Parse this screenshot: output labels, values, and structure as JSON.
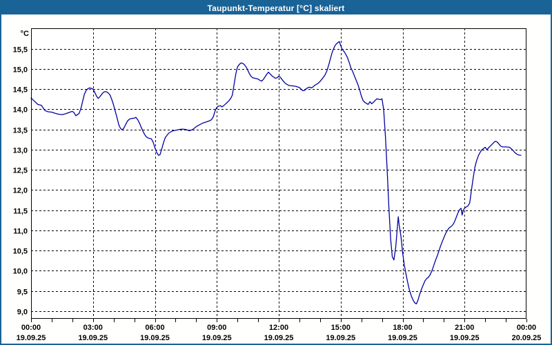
{
  "window": {
    "title": "Taupunkt-Temperatur [°C] skaliert",
    "titlebar_bg": "#1a6397",
    "border_color": "#1a6397",
    "content_bg": "#fffffe"
  },
  "chart_data": {
    "type": "line",
    "title": "Taupunkt-Temperatur [°C] skaliert",
    "series_name": "Taupunkt-Temperatur",
    "unit_label": "°C",
    "line_color": "#0000a0",
    "grid_color": "#000000",
    "axis_color": "#000000",
    "plot_bg": "#ffffff",
    "legend": "none",
    "grid": "dashed, every 0.5 °C horizontal, every 3 h vertical",
    "ylim": [
      8.85,
      16.0
    ],
    "xlim_hours": [
      0,
      24
    ],
    "minor_tick_hours": 1,
    "y_ticks": [
      {
        "value": 15.5,
        "label": "15,5"
      },
      {
        "value": 15.0,
        "label": "15,0"
      },
      {
        "value": 14.5,
        "label": "14,5"
      },
      {
        "value": 14.0,
        "label": "14,0"
      },
      {
        "value": 13.5,
        "label": "13,5"
      },
      {
        "value": 13.0,
        "label": "13,0"
      },
      {
        "value": 12.5,
        "label": "12,5"
      },
      {
        "value": 12.0,
        "label": "12,0"
      },
      {
        "value": 11.5,
        "label": "11,5"
      },
      {
        "value": 11.0,
        "label": "11,0"
      },
      {
        "value": 10.5,
        "label": "10,5"
      },
      {
        "value": 10.0,
        "label": "10,0"
      },
      {
        "value": 9.5,
        "label": "9,5"
      },
      {
        "value": 9.0,
        "label": "9,0"
      }
    ],
    "x_ticks": [
      {
        "hour": 0,
        "time": "00:00",
        "date": "19.09.25"
      },
      {
        "hour": 3,
        "time": "03:00",
        "date": "19.09.25"
      },
      {
        "hour": 6,
        "time": "06:00",
        "date": "19.09.25"
      },
      {
        "hour": 9,
        "time": "09:00",
        "date": "19.09.25"
      },
      {
        "hour": 12,
        "time": "12:00",
        "date": "19.09.25"
      },
      {
        "hour": 15,
        "time": "15:00",
        "date": "19.09.25"
      },
      {
        "hour": 18,
        "time": "18:00",
        "date": "19.09.25"
      },
      {
        "hour": 21,
        "time": "21:00",
        "date": "19.09.25"
      },
      {
        "hour": 24,
        "time": "00:00",
        "date": "20.09.25"
      }
    ],
    "points": [
      [
        0.0,
        14.28
      ],
      [
        0.17,
        14.2
      ],
      [
        0.33,
        14.12
      ],
      [
        0.5,
        14.1
      ],
      [
        0.67,
        13.97
      ],
      [
        0.83,
        13.94
      ],
      [
        1.0,
        13.93
      ],
      [
        1.17,
        13.9
      ],
      [
        1.33,
        13.88
      ],
      [
        1.5,
        13.87
      ],
      [
        1.67,
        13.89
      ],
      [
        1.83,
        13.92
      ],
      [
        2.0,
        13.95
      ],
      [
        2.08,
        13.92
      ],
      [
        2.17,
        13.84
      ],
      [
        2.33,
        13.9
      ],
      [
        2.42,
        14.03
      ],
      [
        2.5,
        14.2
      ],
      [
        2.58,
        14.37
      ],
      [
        2.67,
        14.47
      ],
      [
        2.75,
        14.51
      ],
      [
        2.83,
        14.53
      ],
      [
        2.92,
        14.52
      ],
      [
        3.0,
        14.5
      ],
      [
        3.08,
        14.43
      ],
      [
        3.17,
        14.33
      ],
      [
        3.25,
        14.27
      ],
      [
        3.33,
        14.31
      ],
      [
        3.42,
        14.37
      ],
      [
        3.5,
        14.42
      ],
      [
        3.58,
        14.44
      ],
      [
        3.67,
        14.43
      ],
      [
        3.75,
        14.4
      ],
      [
        3.83,
        14.35
      ],
      [
        3.92,
        14.23
      ],
      [
        4.0,
        14.1
      ],
      [
        4.08,
        13.95
      ],
      [
        4.17,
        13.78
      ],
      [
        4.25,
        13.62
      ],
      [
        4.33,
        13.53
      ],
      [
        4.42,
        13.49
      ],
      [
        4.5,
        13.54
      ],
      [
        4.58,
        13.62
      ],
      [
        4.67,
        13.71
      ],
      [
        4.75,
        13.75
      ],
      [
        4.83,
        13.77
      ],
      [
        5.0,
        13.78
      ],
      [
        5.08,
        13.8
      ],
      [
        5.17,
        13.74
      ],
      [
        5.25,
        13.66
      ],
      [
        5.33,
        13.56
      ],
      [
        5.42,
        13.46
      ],
      [
        5.5,
        13.38
      ],
      [
        5.58,
        13.32
      ],
      [
        5.67,
        13.29
      ],
      [
        5.83,
        13.27
      ],
      [
        5.92,
        13.18
      ],
      [
        6.0,
        13.05
      ],
      [
        6.08,
        12.94
      ],
      [
        6.17,
        12.86
      ],
      [
        6.25,
        12.88
      ],
      [
        6.33,
        13.02
      ],
      [
        6.42,
        13.18
      ],
      [
        6.5,
        13.3
      ],
      [
        6.67,
        13.41
      ],
      [
        6.83,
        13.46
      ],
      [
        7.0,
        13.48
      ],
      [
        7.17,
        13.5
      ],
      [
        7.33,
        13.51
      ],
      [
        7.5,
        13.5
      ],
      [
        7.67,
        13.47
      ],
      [
        7.83,
        13.5
      ],
      [
        8.0,
        13.57
      ],
      [
        8.17,
        13.62
      ],
      [
        8.33,
        13.66
      ],
      [
        8.5,
        13.69
      ],
      [
        8.67,
        13.72
      ],
      [
        8.75,
        13.75
      ],
      [
        8.83,
        13.82
      ],
      [
        8.92,
        13.97
      ],
      [
        9.0,
        14.05
      ],
      [
        9.08,
        14.08
      ],
      [
        9.17,
        14.09
      ],
      [
        9.25,
        14.06
      ],
      [
        9.33,
        14.09
      ],
      [
        9.42,
        14.13
      ],
      [
        9.5,
        14.17
      ],
      [
        9.58,
        14.21
      ],
      [
        9.67,
        14.27
      ],
      [
        9.75,
        14.35
      ],
      [
        9.83,
        14.6
      ],
      [
        9.92,
        14.88
      ],
      [
        10.0,
        15.05
      ],
      [
        10.08,
        15.11
      ],
      [
        10.17,
        15.15
      ],
      [
        10.25,
        15.14
      ],
      [
        10.33,
        15.11
      ],
      [
        10.42,
        15.05
      ],
      [
        10.5,
        14.97
      ],
      [
        10.58,
        14.88
      ],
      [
        10.67,
        14.81
      ],
      [
        10.75,
        14.78
      ],
      [
        10.92,
        14.76
      ],
      [
        11.0,
        14.75
      ],
      [
        11.08,
        14.72
      ],
      [
        11.17,
        14.7
      ],
      [
        11.25,
        14.74
      ],
      [
        11.33,
        14.8
      ],
      [
        11.42,
        14.87
      ],
      [
        11.5,
        14.92
      ],
      [
        11.58,
        14.88
      ],
      [
        11.67,
        14.83
      ],
      [
        11.75,
        14.8
      ],
      [
        11.83,
        14.77
      ],
      [
        11.92,
        14.78
      ],
      [
        12.0,
        14.82
      ],
      [
        12.08,
        14.79
      ],
      [
        12.17,
        14.73
      ],
      [
        12.25,
        14.68
      ],
      [
        12.33,
        14.64
      ],
      [
        12.42,
        14.61
      ],
      [
        12.5,
        14.59
      ],
      [
        12.67,
        14.58
      ],
      [
        12.83,
        14.57
      ],
      [
        13.0,
        14.54
      ],
      [
        13.08,
        14.5
      ],
      [
        13.17,
        14.46
      ],
      [
        13.25,
        14.47
      ],
      [
        13.33,
        14.51
      ],
      [
        13.42,
        14.54
      ],
      [
        13.5,
        14.55
      ],
      [
        13.58,
        14.53
      ],
      [
        13.67,
        14.56
      ],
      [
        13.75,
        14.6
      ],
      [
        13.83,
        14.62
      ],
      [
        13.92,
        14.65
      ],
      [
        14.0,
        14.69
      ],
      [
        14.08,
        14.74
      ],
      [
        14.17,
        14.8
      ],
      [
        14.25,
        14.86
      ],
      [
        14.33,
        14.95
      ],
      [
        14.42,
        15.1
      ],
      [
        14.5,
        15.25
      ],
      [
        14.58,
        15.4
      ],
      [
        14.67,
        15.52
      ],
      [
        14.75,
        15.6
      ],
      [
        14.83,
        15.64
      ],
      [
        14.93,
        15.68
      ],
      [
        15.0,
        15.58
      ],
      [
        15.08,
        15.48
      ],
      [
        15.17,
        15.43
      ],
      [
        15.25,
        15.36
      ],
      [
        15.33,
        15.28
      ],
      [
        15.42,
        15.15
      ],
      [
        15.5,
        15.02
      ],
      [
        15.58,
        14.94
      ],
      [
        15.67,
        14.82
      ],
      [
        15.75,
        14.72
      ],
      [
        15.83,
        14.62
      ],
      [
        15.92,
        14.48
      ],
      [
        16.0,
        14.33
      ],
      [
        16.08,
        14.22
      ],
      [
        16.17,
        14.17
      ],
      [
        16.25,
        14.15
      ],
      [
        16.33,
        14.12
      ],
      [
        16.42,
        14.19
      ],
      [
        16.5,
        14.14
      ],
      [
        16.58,
        14.17
      ],
      [
        16.67,
        14.22
      ],
      [
        16.75,
        14.26
      ],
      [
        16.92,
        14.24
      ],
      [
        17.0,
        14.26
      ],
      [
        17.08,
        14.0
      ],
      [
        17.17,
        13.3
      ],
      [
        17.25,
        12.5
      ],
      [
        17.33,
        11.6
      ],
      [
        17.42,
        10.8
      ],
      [
        17.5,
        10.35
      ],
      [
        17.58,
        10.27
      ],
      [
        17.67,
        10.6
      ],
      [
        17.75,
        11.1
      ],
      [
        17.79,
        11.34
      ],
      [
        17.83,
        11.15
      ],
      [
        17.92,
        10.85
      ],
      [
        18.0,
        10.45
      ],
      [
        18.08,
        10.15
      ],
      [
        18.17,
        9.9
      ],
      [
        18.25,
        9.7
      ],
      [
        18.33,
        9.52
      ],
      [
        18.42,
        9.38
      ],
      [
        18.5,
        9.28
      ],
      [
        18.58,
        9.21
      ],
      [
        18.67,
        9.18
      ],
      [
        18.75,
        9.28
      ],
      [
        18.83,
        9.42
      ],
      [
        18.92,
        9.55
      ],
      [
        19.0,
        9.65
      ],
      [
        19.08,
        9.75
      ],
      [
        19.17,
        9.81
      ],
      [
        19.25,
        9.84
      ],
      [
        19.33,
        9.9
      ],
      [
        19.42,
        10.0
      ],
      [
        19.5,
        10.12
      ],
      [
        19.58,
        10.24
      ],
      [
        19.67,
        10.36
      ],
      [
        19.75,
        10.48
      ],
      [
        19.83,
        10.6
      ],
      [
        19.92,
        10.72
      ],
      [
        20.0,
        10.82
      ],
      [
        20.08,
        10.92
      ],
      [
        20.17,
        11.0
      ],
      [
        20.25,
        11.06
      ],
      [
        20.33,
        11.09
      ],
      [
        20.42,
        11.13
      ],
      [
        20.5,
        11.2
      ],
      [
        20.58,
        11.3
      ],
      [
        20.67,
        11.42
      ],
      [
        20.75,
        11.51
      ],
      [
        20.83,
        11.55
      ],
      [
        20.88,
        11.38
      ],
      [
        20.96,
        11.52
      ],
      [
        21.0,
        11.55
      ],
      [
        21.08,
        11.58
      ],
      [
        21.17,
        11.61
      ],
      [
        21.25,
        11.68
      ],
      [
        21.29,
        11.82
      ],
      [
        21.33,
        11.98
      ],
      [
        21.42,
        12.3
      ],
      [
        21.5,
        12.56
      ],
      [
        21.58,
        12.72
      ],
      [
        21.67,
        12.85
      ],
      [
        21.75,
        12.93
      ],
      [
        21.83,
        12.99
      ],
      [
        21.92,
        13.03
      ],
      [
        22.0,
        13.06
      ],
      [
        22.08,
        13.0
      ],
      [
        22.17,
        13.05
      ],
      [
        22.25,
        13.09
      ],
      [
        22.33,
        13.13
      ],
      [
        22.42,
        13.18
      ],
      [
        22.5,
        13.21
      ],
      [
        22.58,
        13.19
      ],
      [
        22.67,
        13.14
      ],
      [
        22.75,
        13.09
      ],
      [
        22.83,
        13.07
      ],
      [
        23.0,
        13.07
      ],
      [
        23.17,
        13.06
      ],
      [
        23.25,
        13.03
      ],
      [
        23.33,
        12.99
      ],
      [
        23.42,
        12.94
      ],
      [
        23.5,
        12.9
      ],
      [
        23.62,
        12.87
      ],
      [
        23.73,
        12.86
      ]
    ]
  }
}
